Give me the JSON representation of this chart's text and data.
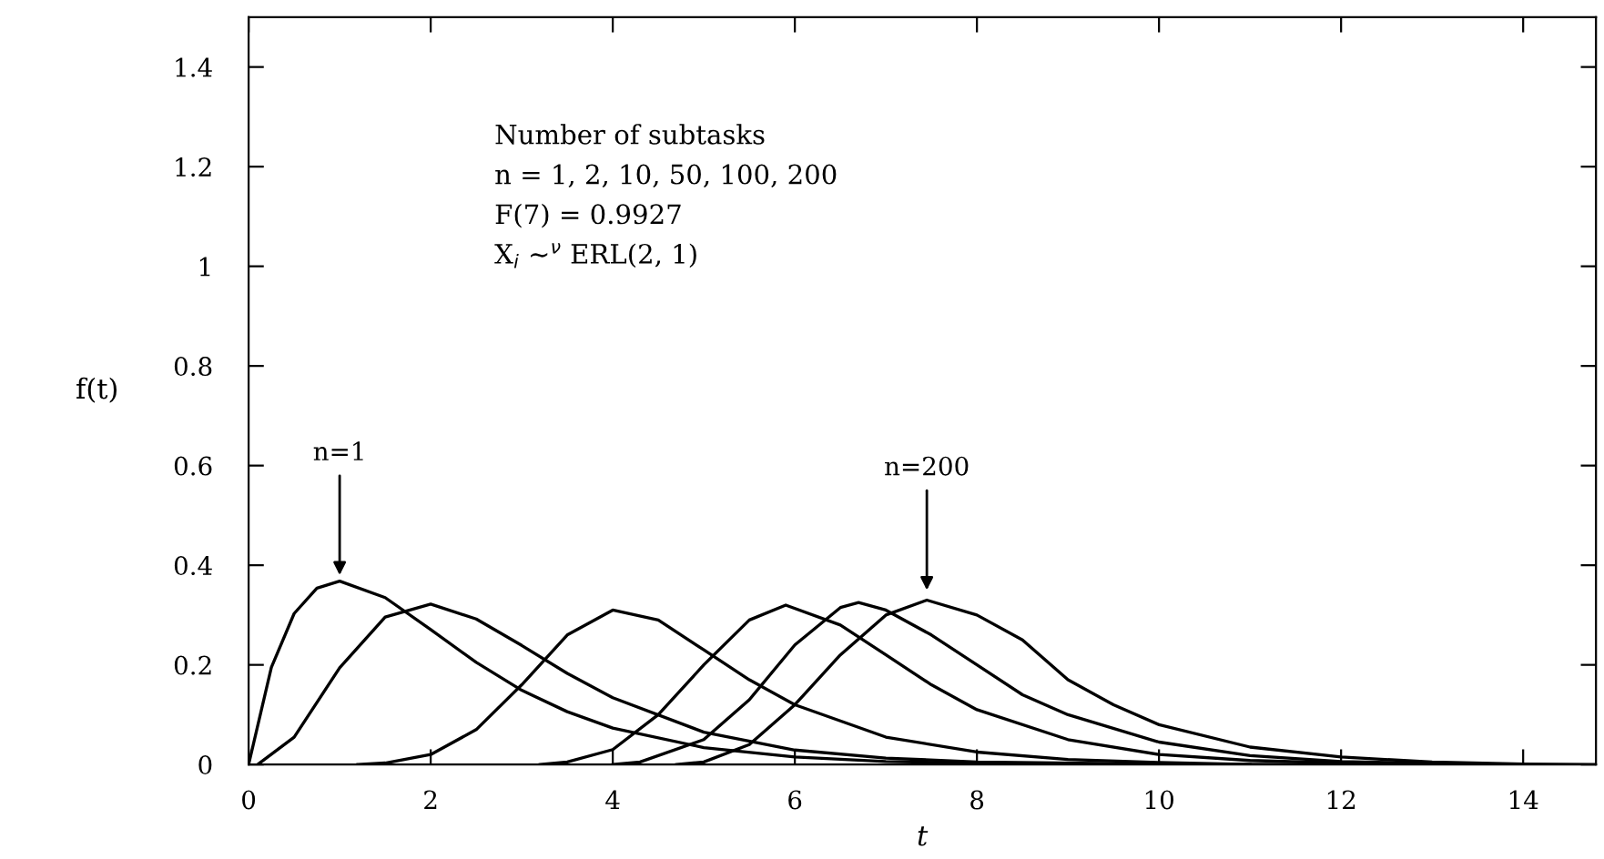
{
  "chart_data": {
    "type": "line",
    "xlabel": "t",
    "ylabel": "f(t)",
    "xlim": [
      0,
      14.8
    ],
    "ylim": [
      0,
      1.5
    ],
    "xticks": [
      0,
      2,
      4,
      6,
      8,
      10,
      12,
      14
    ],
    "yticks": [
      0,
      0.2,
      0.4,
      0.6,
      0.8,
      1,
      1.2,
      1.4
    ],
    "grid": false,
    "legend": false,
    "marker": "none",
    "line_style": "solid",
    "annotations": [
      "Number of subtasks",
      "n = 1, 2, 10, 50, 100, 200",
      "F(7) = 0.9927",
      "X$_{i}$ ∼$^{ν}$ ERL(2, 1)",
      {
        "text": "n=1",
        "x": 1,
        "y": 0.37
      },
      {
        "text": "n=200",
        "x": 7.45,
        "y": 0.34
      }
    ],
    "series": [
      {
        "color": "#000000",
        "x": [
          0,
          0.25,
          0.5,
          0.75,
          1,
          1.5,
          2,
          2.5,
          3,
          3.5,
          4,
          5,
          6,
          7,
          8,
          10
        ],
        "values": [
          0,
          0.195,
          0.303,
          0.354,
          0.368,
          0.335,
          0.271,
          0.205,
          0.149,
          0.106,
          0.073,
          0.034,
          0.015,
          0.006,
          0.003,
          0
        ]
      },
      {
        "color": "#000000",
        "x": [
          0.1,
          0.5,
          1,
          1.5,
          2,
          2.5,
          3,
          3.5,
          4,
          5,
          6,
          7,
          8,
          10,
          12
        ],
        "values": [
          0,
          0.055,
          0.194,
          0.296,
          0.322,
          0.292,
          0.239,
          0.183,
          0.134,
          0.065,
          0.029,
          0.013,
          0.005,
          0.001,
          0
        ]
      },
      {
        "color": "#000000",
        "x": [
          1.2,
          1.5,
          2,
          2.5,
          3,
          3.5,
          4,
          4.5,
          5,
          5.5,
          6,
          7,
          8,
          9,
          10,
          11
        ],
        "values": [
          0,
          0.003,
          0.02,
          0.07,
          0.16,
          0.26,
          0.31,
          0.29,
          0.23,
          0.17,
          0.12,
          0.055,
          0.025,
          0.01,
          0.004,
          0
        ]
      },
      {
        "color": "#000000",
        "x": [
          3.2,
          3.5,
          4,
          4.5,
          5,
          5.5,
          5.9,
          6.5,
          7,
          7.5,
          8,
          9,
          10,
          11,
          12,
          13
        ],
        "values": [
          0,
          0.005,
          0.03,
          0.1,
          0.2,
          0.29,
          0.32,
          0.28,
          0.22,
          0.16,
          0.11,
          0.05,
          0.02,
          0.008,
          0.003,
          0
        ]
      },
      {
        "color": "#000000",
        "x": [
          4,
          4.3,
          5,
          5.5,
          6,
          6.5,
          6.7,
          7,
          7.5,
          8,
          8.5,
          9,
          10,
          11,
          12,
          13,
          14
        ],
        "values": [
          0,
          0.005,
          0.05,
          0.13,
          0.24,
          0.315,
          0.325,
          0.31,
          0.26,
          0.2,
          0.14,
          0.1,
          0.045,
          0.018,
          0.006,
          0.002,
          0
        ]
      },
      {
        "color": "#000000",
        "x": [
          4.7,
          5,
          5.5,
          6,
          6.5,
          7,
          7.45,
          8,
          8.5,
          9,
          9.5,
          10,
          11,
          12,
          13,
          14,
          14.8
        ],
        "values": [
          0,
          0.005,
          0.04,
          0.12,
          0.22,
          0.3,
          0.33,
          0.3,
          0.25,
          0.17,
          0.12,
          0.08,
          0.035,
          0.015,
          0.005,
          0.001,
          0
        ]
      }
    ]
  }
}
